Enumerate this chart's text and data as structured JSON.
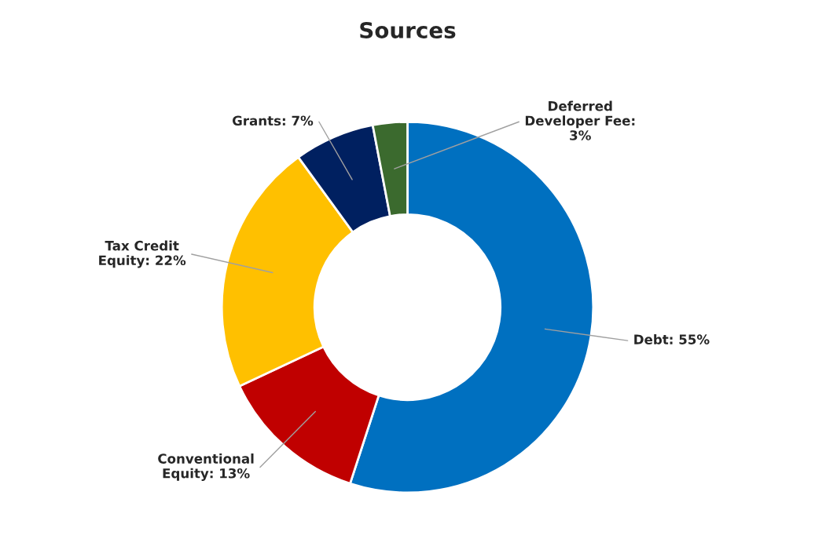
{
  "chart_data": {
    "type": "donut",
    "title": "Sources",
    "categories": [
      "Debt: 55%",
      "Conventional Equity: 13%",
      "Tax Credit Equity: 22%",
      "Grants: 7%",
      "Deferred Developer Fee: 3%"
    ],
    "values": [
      55,
      13,
      22,
      7,
      3
    ],
    "colors": [
      "#0070c0",
      "#c00000",
      "#ffc000",
      "#002060",
      "#3b6a2e"
    ]
  }
}
